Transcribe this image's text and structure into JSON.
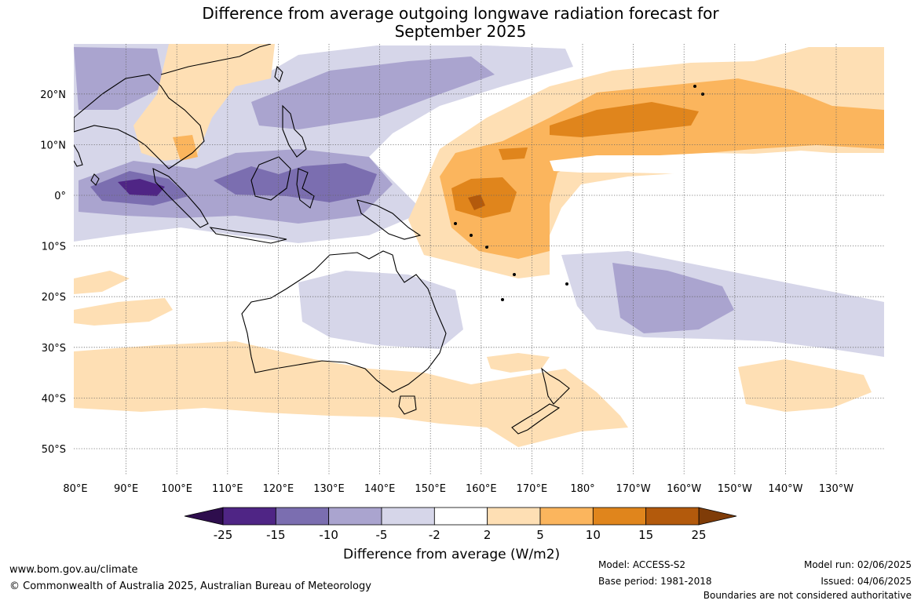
{
  "title": {
    "line1": "Difference from average outgoing longwave radiation forecast for",
    "line2": "September 2025"
  },
  "map": {
    "lat_labels": [
      "20°N",
      "10°N",
      "0°",
      "10°S",
      "20°S",
      "30°S",
      "40°S",
      "50°S"
    ],
    "lon_labels": [
      "80°E",
      "90°E",
      "100°E",
      "110°E",
      "120°E",
      "130°E",
      "140°E",
      "150°E",
      "160°E",
      "170°E",
      "180°",
      "170°W",
      "160°W",
      "150°W",
      "140°W",
      "130°W"
    ]
  },
  "legend": {
    "tick_labels": [
      "-25",
      "-15",
      "-10",
      "-5",
      "-2",
      "2",
      "5",
      "10",
      "15",
      "25"
    ],
    "colors": [
      "#2e0d4d",
      "#4f2585",
      "#7b6eb0",
      "#aaa4cf",
      "#d6d6e9",
      "#ffffff",
      "#fedfb4",
      "#fbb55d",
      "#e0851c",
      "#b35a0c",
      "#7f3c08"
    ],
    "title": "Difference from average (W/m2)"
  },
  "footer": {
    "website": "www.bom.gov.au/climate",
    "copyright": "© Commonwealth of Australia 2025, Australian Bureau of Meteorology",
    "model": "Model: ACCESS-S2",
    "base_period": "Base period: 1981-2018",
    "model_run": "Model run: 02/06/2025",
    "issued": "Issued: 04/06/2025",
    "disclaimer": "Boundaries are not considered authoritative"
  }
}
